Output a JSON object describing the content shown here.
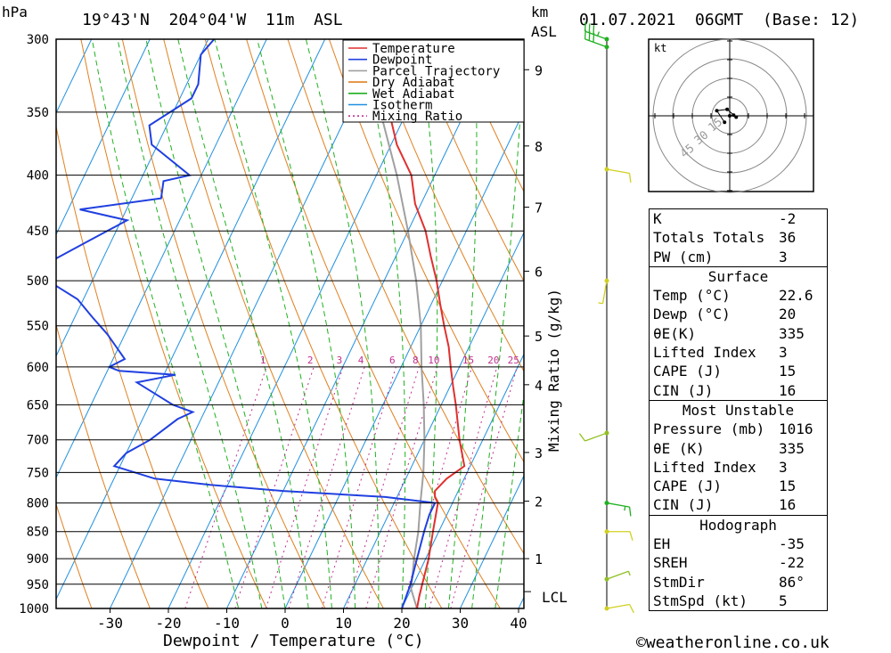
{
  "header": {
    "pressure_unit": "hPa",
    "location": "19°43'N  204°04'W  11m  ASL",
    "km_unit": "km",
    "km_sub": "ASL",
    "datetime": "01.07.2021  06GMT  (Base: 12)"
  },
  "footer": {
    "xlabel": "Dewpoint / Temperature (°C)",
    "ylabel2": "Mixing Ratio (g/kg)",
    "copyright": "©weatheronline.co.uk",
    "lcl": "LCL",
    "hodo_unit": "kt"
  },
  "legend": [
    {
      "name": "Temperature",
      "color": "#e03030",
      "style": "solid"
    },
    {
      "name": "Dewpoint",
      "color": "#2040e0",
      "style": "solid"
    },
    {
      "name": "Parcel Trajectory",
      "color": "#a0a0a0",
      "style": "solid"
    },
    {
      "name": "Dry Adiabat",
      "color": "#e08020",
      "style": "solid"
    },
    {
      "name": "Wet Adiabat",
      "color": "#20b020",
      "style": "solid"
    },
    {
      "name": "Isotherm",
      "color": "#2090e0",
      "style": "solid"
    },
    {
      "name": "Mixing Ratio",
      "color": "#c03090",
      "style": "dotted"
    }
  ],
  "chart_data": {
    "type": "line",
    "subtype": "skew-t log-p",
    "pressure_levels": [
      300,
      350,
      400,
      450,
      500,
      550,
      600,
      650,
      700,
      750,
      800,
      850,
      900,
      950,
      1000
    ],
    "x_ticks": [
      -30,
      -20,
      -10,
      0,
      10,
      20,
      30,
      40
    ],
    "km_ticks": [
      {
        "km": 1,
        "p": 900
      },
      {
        "km": 2,
        "p": 797
      },
      {
        "km": 3,
        "p": 719
      },
      {
        "km": 4,
        "p": 623
      },
      {
        "km": 5,
        "p": 562
      },
      {
        "km": 6,
        "p": 490
      },
      {
        "km": 7,
        "p": 428
      },
      {
        "km": 8,
        "p": 376
      },
      {
        "km": 9,
        "p": 320
      }
    ],
    "mixing_ratio_labels": [
      "1",
      "2",
      "3",
      "4",
      "6",
      "8",
      "10",
      "15",
      "20",
      "25"
    ],
    "temperature": [
      [
        300,
        -31
      ],
      [
        330,
        -26
      ],
      [
        350,
        -23
      ],
      [
        375,
        -19
      ],
      [
        400,
        -14
      ],
      [
        425,
        -11
      ],
      [
        450,
        -7
      ],
      [
        475,
        -4
      ],
      [
        500,
        -1
      ],
      [
        525,
        1.5
      ],
      [
        550,
        4
      ],
      [
        575,
        6.5
      ],
      [
        600,
        8.5
      ],
      [
        625,
        10.5
      ],
      [
        650,
        12.5
      ],
      [
        700,
        16
      ],
      [
        740,
        19
      ],
      [
        760,
        17
      ],
      [
        780,
        16
      ],
      [
        790,
        16.5
      ],
      [
        800,
        17.5
      ],
      [
        850,
        19
      ],
      [
        900,
        20.5
      ],
      [
        950,
        21.5
      ],
      [
        975,
        22
      ],
      [
        1000,
        22.6
      ]
    ],
    "dewpoint": [
      [
        300,
        -59
      ],
      [
        310,
        -60
      ],
      [
        330,
        -58
      ],
      [
        340,
        -58
      ],
      [
        360,
        -63
      ],
      [
        375,
        -61
      ],
      [
        400,
        -52
      ],
      [
        405,
        -56
      ],
      [
        420,
        -55
      ],
      [
        430,
        -68
      ],
      [
        440,
        -59
      ],
      [
        460,
        -64
      ],
      [
        490,
        -71
      ],
      [
        520,
        -61
      ],
      [
        540,
        -57
      ],
      [
        560,
        -53
      ],
      [
        590,
        -48
      ],
      [
        600,
        -50
      ],
      [
        605,
        -48
      ],
      [
        610,
        -38
      ],
      [
        620,
        -44
      ],
      [
        650,
        -36
      ],
      [
        660,
        -32
      ],
      [
        670,
        -34
      ],
      [
        700,
        -37
      ],
      [
        720,
        -40
      ],
      [
        740,
        -41
      ],
      [
        760,
        -33
      ],
      [
        770,
        -23
      ],
      [
        780,
        -10
      ],
      [
        790,
        8
      ],
      [
        800,
        17
      ],
      [
        820,
        17
      ],
      [
        850,
        17.5
      ],
      [
        900,
        18.5
      ],
      [
        925,
        19
      ],
      [
        950,
        19.5
      ],
      [
        1000,
        20
      ]
    ],
    "parcel": [
      [
        1000,
        22.6
      ],
      [
        960,
        20
      ],
      [
        900,
        18
      ],
      [
        850,
        16.5
      ],
      [
        800,
        14.5
      ],
      [
        750,
        12.5
      ],
      [
        700,
        10
      ],
      [
        650,
        7
      ],
      [
        600,
        3.5
      ],
      [
        550,
        0
      ],
      [
        500,
        -4.5
      ],
      [
        450,
        -10
      ],
      [
        400,
        -16.5
      ],
      [
        350,
        -24.5
      ],
      [
        300,
        -34
      ]
    ],
    "wind_barbs": [
      {
        "p": 300,
        "dir": 290,
        "speed": 35,
        "color": "#20b020"
      },
      {
        "p": 305,
        "dir": 290,
        "speed": 30,
        "color": "#20b020"
      },
      {
        "p": 395,
        "dir": 100,
        "speed": 10,
        "color": "#d0d020"
      },
      {
        "p": 500,
        "dir": 190,
        "speed": 5,
        "color": "#d0d020"
      },
      {
        "p": 690,
        "dir": 250,
        "speed": 10,
        "color": "#90c020"
      },
      {
        "p": 800,
        "dir": 100,
        "speed": 15,
        "color": "#20b020"
      },
      {
        "p": 850,
        "dir": 90,
        "speed": 10,
        "color": "#d0d020"
      },
      {
        "p": 940,
        "dir": 70,
        "speed": 5,
        "color": "#90c020"
      },
      {
        "p": 1000,
        "dir": 80,
        "speed": 10,
        "color": "#d0d020"
      }
    ],
    "hodograph": {
      "ring_labels": [
        "15",
        "30",
        "45"
      ],
      "points": [
        [
          0,
          0
        ],
        [
          3,
          0.5
        ],
        [
          5,
          -1
        ],
        [
          -2,
          5
        ],
        [
          -10,
          4
        ],
        [
          -4,
          -5
        ]
      ]
    }
  },
  "indices": {
    "top": [
      {
        "k": "K",
        "v": "-2"
      },
      {
        "k": "Totals Totals",
        "v": "36"
      },
      {
        "k": "PW (cm)",
        "v": "3"
      }
    ],
    "surface_title": "Surface",
    "surface": [
      {
        "k": "Temp (°C)",
        "v": "22.6"
      },
      {
        "k": "Dewp (°C)",
        "v": "20"
      },
      {
        "k": "θE(K)",
        "v": "335"
      },
      {
        "k": "Lifted Index",
        "v": "3"
      },
      {
        "k": "CAPE (J)",
        "v": "15"
      },
      {
        "k": "CIN (J)",
        "v": "16"
      }
    ],
    "mu_title": "Most Unstable",
    "mu": [
      {
        "k": "Pressure (mb)",
        "v": "1016"
      },
      {
        "k": "θE (K)",
        "v": "335"
      },
      {
        "k": "Lifted Index",
        "v": "3"
      },
      {
        "k": "CAPE (J)",
        "v": "15"
      },
      {
        "k": "CIN (J)",
        "v": "16"
      }
    ],
    "hodo_title": "Hodograph",
    "hodo": [
      {
        "k": "EH",
        "v": "-35"
      },
      {
        "k": "SREH",
        "v": "-22"
      },
      {
        "k": "StmDir",
        "v": "86°"
      },
      {
        "k": "StmSpd (kt)",
        "v": "5"
      }
    ]
  }
}
